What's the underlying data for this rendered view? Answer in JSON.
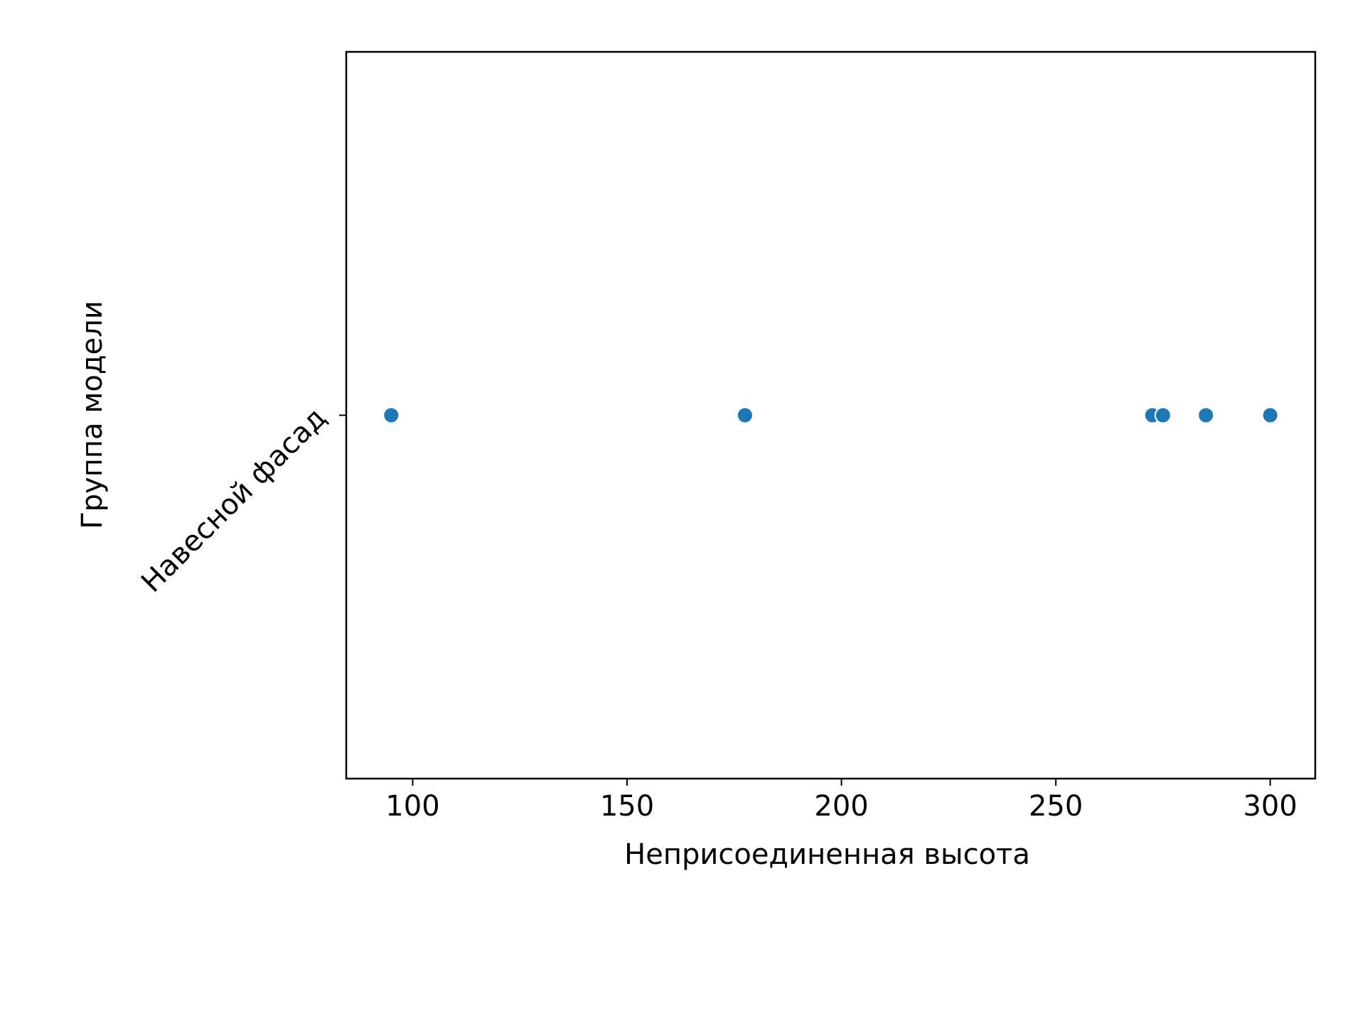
{
  "chart_data": {
    "type": "scatter",
    "xlabel": "Неприсоединенная высота",
    "ylabel": "Группа модели",
    "categories": [
      "Навесной фасад"
    ],
    "xlim": [
      84.5,
      310.5
    ],
    "xticks": [
      "100",
      "150",
      "200",
      "250",
      "300"
    ],
    "grid": false,
    "legend": "none",
    "points": [
      {
        "x": 95,
        "y": "Навесной фасад"
      },
      {
        "x": 177.5,
        "y": "Навесной фасад"
      },
      {
        "x": 272.5,
        "y": "Навесной фасад"
      },
      {
        "x": 275,
        "y": "Навесной фасад"
      },
      {
        "x": 285,
        "y": "Навесной фасад"
      },
      {
        "x": 300,
        "y": "Навесной фасад"
      }
    ],
    "colors": {
      "marker": "#1f77b4",
      "marker_edge": "#ffffff",
      "axes": "#000000"
    }
  }
}
